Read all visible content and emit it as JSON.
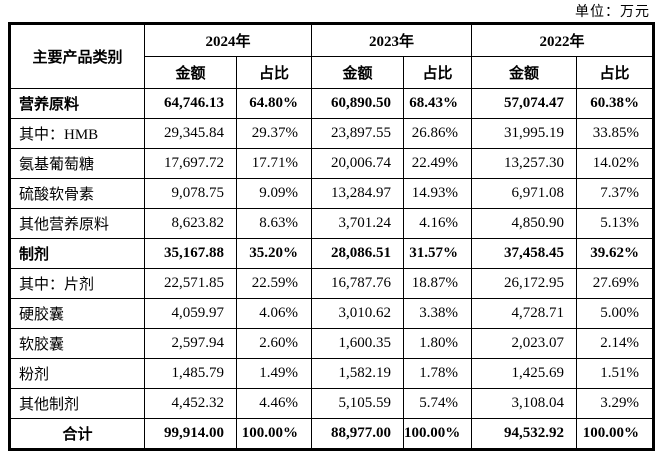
{
  "unit_label": "单位：万元",
  "colors": {
    "background": "#ffffff",
    "border": "#000000",
    "text": "#000000"
  },
  "table": {
    "category_header": "主要产品类别",
    "year_headers": [
      "2024年",
      "2023年",
      "2022年"
    ],
    "sub_headers": {
      "amount": "金额",
      "ratio": "占比"
    },
    "rows": [
      {
        "category": "营养原料",
        "bold": true,
        "total": false,
        "values": [
          "64,746.13",
          "64.80%",
          "60,890.50",
          "68.43%",
          "57,074.47",
          "60.38%"
        ]
      },
      {
        "category": "其中：HMB",
        "bold": false,
        "total": false,
        "values": [
          "29,345.84",
          "29.37%",
          "23,897.55",
          "26.86%",
          "31,995.19",
          "33.85%"
        ]
      },
      {
        "category": "氨基葡萄糖",
        "bold": false,
        "total": false,
        "values": [
          "17,697.72",
          "17.71%",
          "20,006.74",
          "22.49%",
          "13,257.30",
          "14.02%"
        ]
      },
      {
        "category": "硫酸软骨素",
        "bold": false,
        "total": false,
        "values": [
          "9,078.75",
          "9.09%",
          "13,284.97",
          "14.93%",
          "6,971.08",
          "7.37%"
        ]
      },
      {
        "category": "其他营养原料",
        "bold": false,
        "total": false,
        "values": [
          "8,623.82",
          "8.63%",
          "3,701.24",
          "4.16%",
          "4,850.90",
          "5.13%"
        ]
      },
      {
        "category": "制剂",
        "bold": true,
        "total": false,
        "values": [
          "35,167.88",
          "35.20%",
          "28,086.51",
          "31.57%",
          "37,458.45",
          "39.62%"
        ]
      },
      {
        "category": "其中：片剂",
        "bold": false,
        "total": false,
        "values": [
          "22,571.85",
          "22.59%",
          "16,787.76",
          "18.87%",
          "26,172.95",
          "27.69%"
        ]
      },
      {
        "category": "硬胶囊",
        "bold": false,
        "total": false,
        "values": [
          "4,059.97",
          "4.06%",
          "3,010.62",
          "3.38%",
          "4,728.71",
          "5.00%"
        ]
      },
      {
        "category": "软胶囊",
        "bold": false,
        "total": false,
        "values": [
          "2,597.94",
          "2.60%",
          "1,600.35",
          "1.80%",
          "2,023.07",
          "2.14%"
        ]
      },
      {
        "category": "粉剂",
        "bold": false,
        "total": false,
        "values": [
          "1,485.79",
          "1.49%",
          "1,582.19",
          "1.78%",
          "1,425.69",
          "1.51%"
        ]
      },
      {
        "category": "其他制剂",
        "bold": false,
        "total": false,
        "values": [
          "4,452.32",
          "4.46%",
          "5,105.59",
          "5.74%",
          "3,108.04",
          "3.29%"
        ]
      },
      {
        "category": "合计",
        "bold": true,
        "total": true,
        "values": [
          "99,914.00",
          "100.00%",
          "88,977.00",
          "100.00%",
          "94,532.92",
          "100.00%"
        ]
      }
    ]
  }
}
